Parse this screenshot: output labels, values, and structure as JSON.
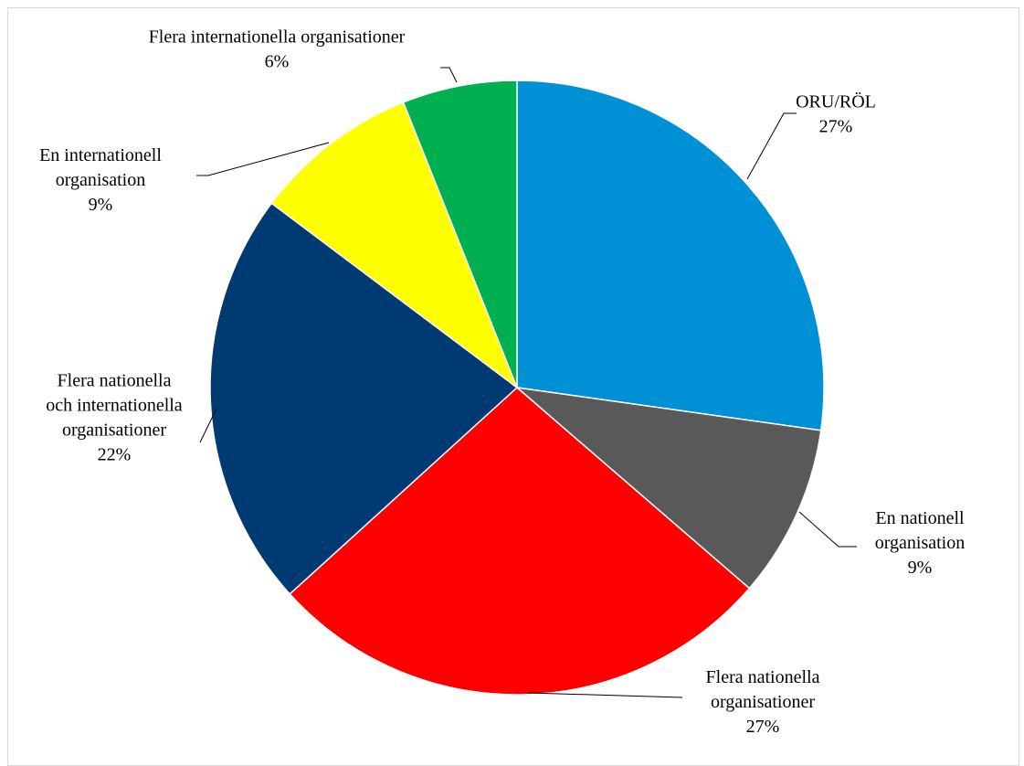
{
  "chart_data": {
    "type": "pie",
    "start_angle_deg": 0,
    "direction": "clockwise",
    "slices": [
      {
        "label_lines": [
          "ORU/RÖL"
        ],
        "percent_label": "27%",
        "value": 27.5,
        "color": "#0090D6"
      },
      {
        "label_lines": [
          "En nationell",
          "organisation"
        ],
        "percent_label": "9%",
        "value": 9.2,
        "color": "#595959"
      },
      {
        "label_lines": [
          "Flera nationella",
          "organisationer"
        ],
        "percent_label": "27%",
        "value": 27.2,
        "color": "#FF0000"
      },
      {
        "label_lines": [
          "Flera nationella",
          "och internationella",
          "organisationer"
        ],
        "percent_label": "22%",
        "value": 22.2,
        "color": "#003A73"
      },
      {
        "label_lines": [
          "En internationell",
          "organisation"
        ],
        "percent_label": "9%",
        "value": 8.8,
        "color": "#FFFF00"
      },
      {
        "label_lines": [
          "Flera internationella organisationer"
        ],
        "percent_label": "6%",
        "value": 6.1,
        "color": "#00B050"
      }
    ]
  }
}
